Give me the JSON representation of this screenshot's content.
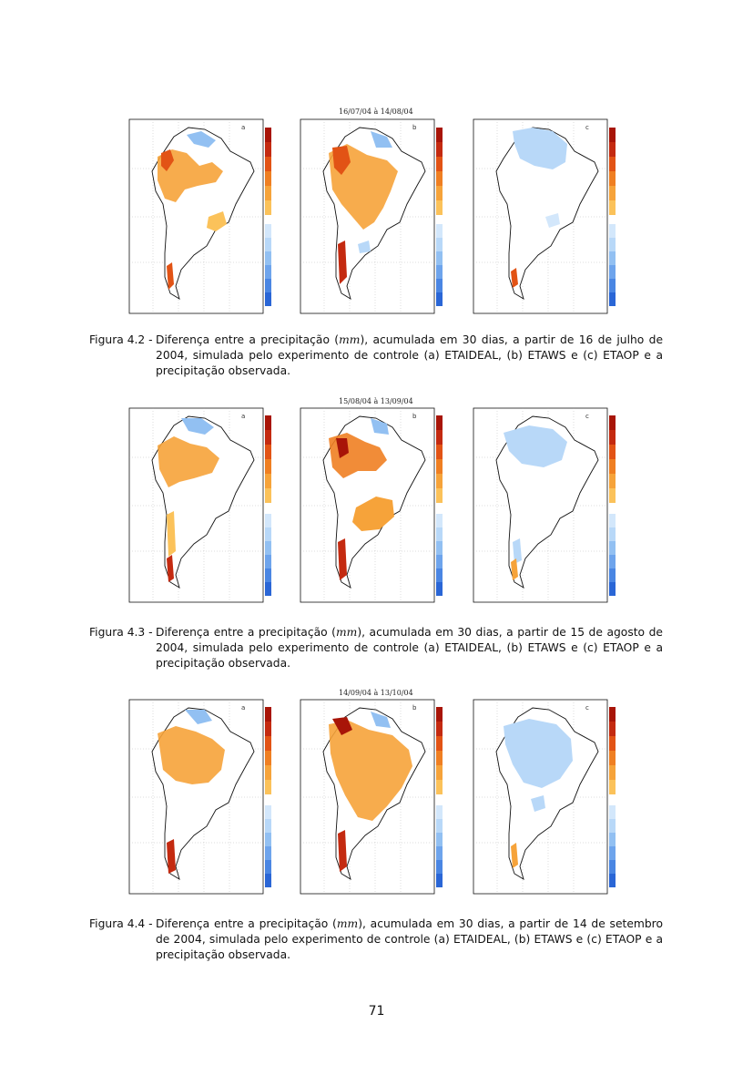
{
  "figures": [
    {
      "id": "fig-4-2",
      "map_title": "16/07/04 à 14/08/04",
      "panel_letters": [
        "a",
        "b",
        "c"
      ],
      "caption_label": "Figura 4.2 -",
      "caption_pre": "Diferença entre a precipitação (",
      "caption_unit": "mm",
      "caption_post": "), acumulada em 30 dias, a partir de 16 de julho de 2004, simulada pelo experimento de controle (a) ETAIDEAL, (b) ETAWS e (c) ETAOP e a precipitação observada."
    },
    {
      "id": "fig-4-3",
      "map_title": "15/08/04 à 13/09/04",
      "panel_letters": [
        "a",
        "b",
        "c"
      ],
      "caption_label": "Figura 4.3 -",
      "caption_pre": "Diferença entre a precipitação (",
      "caption_unit": "mm",
      "caption_post": "), acumulada em 30 dias, a partir de 15 de agosto de 2004, simulada pelo experimento de controle (a) ETAIDEAL, (b) ETAWS e (c) ETAOP e a precipitação observada."
    },
    {
      "id": "fig-4-4",
      "map_title": "14/09/04 à 13/10/04",
      "panel_letters": [
        "a",
        "b",
        "c"
      ],
      "caption_label": "Figura 4.4 -",
      "caption_pre": "Diferença entre a precipitação (",
      "caption_unit": "mm",
      "caption_post": "), acumulada em 30 dias, a partir de 14 de setembro de 2004, simulada pelo experimento de controle (a) ETAIDEAL, (b) ETAWS e (c) ETAOP e a precipitação observada."
    }
  ],
  "page_number": "71",
  "colors": {
    "positive": [
      "#fbc25a",
      "#f6a33a",
      "#ef7f22",
      "#e25315",
      "#c42a10",
      "#a81508"
    ],
    "negative": [
      "#2a66d6",
      "#4a86e3",
      "#6ea4ec",
      "#92c0f2",
      "#b8d8f8",
      "#d3e7fb"
    ],
    "land_outline": "#111111",
    "grid": "#999999"
  }
}
